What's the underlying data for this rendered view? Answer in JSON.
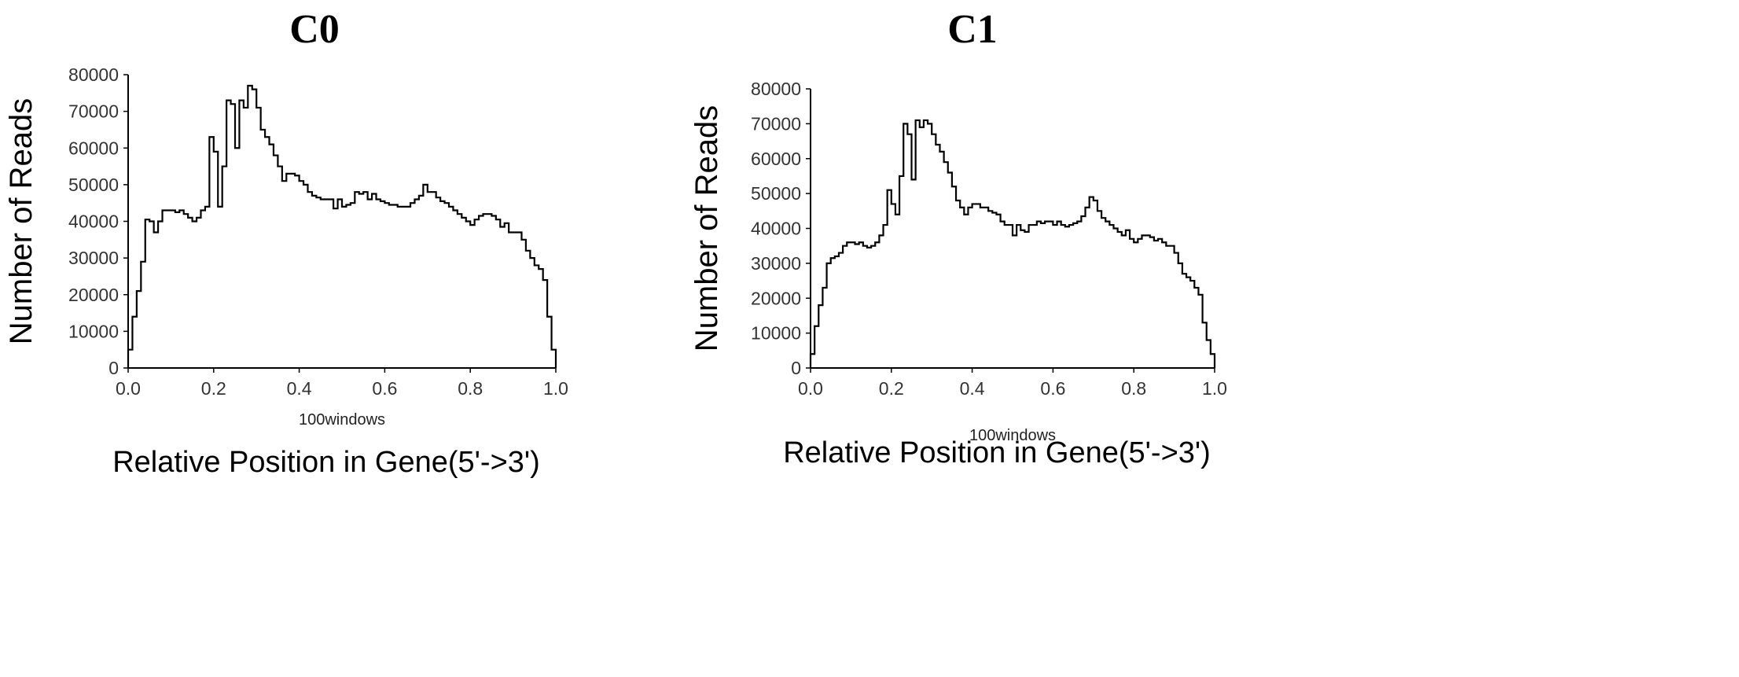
{
  "chart_data": [
    {
      "type": "line",
      "title": "C0",
      "xlabel": "Relative Position in Gene(5'->3')",
      "xsublabel": "100windows",
      "ylabel": "Number of Reads",
      "xlim": [
        0.0,
        1.0
      ],
      "ylim": [
        0,
        80000
      ],
      "xticks": [
        "0.0",
        "0.2",
        "0.4",
        "0.6",
        "0.8",
        "1.0"
      ],
      "yticks": [
        "0",
        "10000",
        "20000",
        "30000",
        "40000",
        "50000",
        "60000",
        "70000",
        "80000"
      ],
      "grid": false,
      "series": [
        {
          "values": [
            5000,
            14000,
            21000,
            29000,
            40500,
            40000,
            37000,
            40000,
            43000,
            43000,
            43000,
            42500,
            43000,
            42000,
            41000,
            40000,
            41000,
            43000,
            44000,
            63000,
            59000,
            44000,
            55000,
            73000,
            72000,
            60000,
            73000,
            71000,
            77000,
            76000,
            71000,
            65000,
            63000,
            61000,
            58000,
            55000,
            51000,
            53000,
            53000,
            52500,
            51000,
            50000,
            48000,
            47000,
            46500,
            46000,
            46000,
            46000,
            43500,
            46000,
            44000,
            44500,
            45000,
            48000,
            47500,
            48000,
            46000,
            47500,
            46000,
            45500,
            45000,
            44500,
            44500,
            44000,
            44000,
            44000,
            45000,
            46000,
            47000,
            50000,
            48000,
            48000,
            46500,
            45500,
            45000,
            44000,
            43000,
            42000,
            41000,
            40000,
            39000,
            40500,
            41500,
            42000,
            42000,
            41500,
            40500,
            38500,
            39500,
            37000,
            37000,
            37000,
            35000,
            32000,
            30000,
            28000,
            27000,
            24000,
            14000,
            5000
          ]
        }
      ]
    },
    {
      "type": "line",
      "title": "C1",
      "xlabel": "Relative Position in Gene(5'->3')",
      "xsublabel": "100windows",
      "ylabel": "Number of Reads",
      "xlim": [
        0.0,
        1.0
      ],
      "ylim": [
        0,
        80000
      ],
      "xticks": [
        "0.0",
        "0.2",
        "0.4",
        "0.6",
        "0.8",
        "1.0"
      ],
      "yticks": [
        "0",
        "10000",
        "20000",
        "30000",
        "40000",
        "50000",
        "60000",
        "70000",
        "80000"
      ],
      "grid": false,
      "series": [
        {
          "values": [
            4000,
            12000,
            18000,
            23000,
            30000,
            31500,
            32000,
            33000,
            35000,
            36000,
            36000,
            35500,
            36000,
            35000,
            34500,
            35000,
            36000,
            38000,
            41000,
            51000,
            47000,
            44000,
            55000,
            70000,
            67000,
            54000,
            71000,
            69000,
            71000,
            70000,
            67000,
            64000,
            62000,
            59000,
            56000,
            52000,
            48000,
            46000,
            44000,
            46000,
            47000,
            47000,
            46000,
            46000,
            45000,
            44500,
            44000,
            42000,
            41000,
            41000,
            38000,
            41000,
            39500,
            39000,
            41000,
            41000,
            42000,
            41500,
            42000,
            42000,
            41000,
            42000,
            41000,
            40500,
            41000,
            41500,
            42000,
            43500,
            46000,
            49000,
            48000,
            45000,
            43000,
            42000,
            41000,
            40000,
            39000,
            38000,
            39500,
            37000,
            36000,
            37000,
            38000,
            38000,
            37500,
            36500,
            37000,
            36000,
            35000,
            35000,
            33000,
            30000,
            27000,
            26000,
            25000,
            23000,
            21000,
            13000,
            8000,
            4000
          ]
        }
      ]
    }
  ]
}
